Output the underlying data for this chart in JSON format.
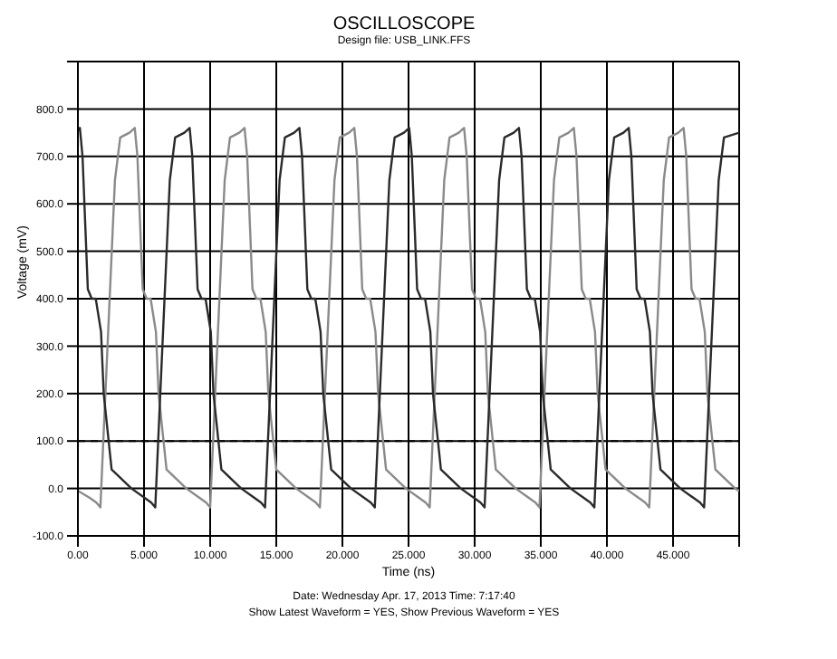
{
  "chart_data": {
    "type": "line",
    "title": "OSCILLOSCOPE",
    "subtitle": "Design file: USB_LINK.FFS",
    "xlabel": "Time (ns)",
    "ylabel": "Voltage (mV)",
    "annotations": [
      "Date: Wednesday Apr. 17, 2013  Time: 7:17:40",
      "Show Latest Waveform = YES,  Show Previous Waveform = YES"
    ],
    "xlim": [
      0,
      50
    ],
    "ylim": [
      -100,
      900
    ],
    "xticks": [
      {
        "value": 0,
        "label": "0.00"
      },
      {
        "value": 5,
        "label": "5.000"
      },
      {
        "value": 10,
        "label": "10.000"
      },
      {
        "value": 15,
        "label": "15.000"
      },
      {
        "value": 20,
        "label": "20.000"
      },
      {
        "value": 25,
        "label": "25.000"
      },
      {
        "value": 30,
        "label": "30.000"
      },
      {
        "value": 35,
        "label": "35.000"
      },
      {
        "value": 40,
        "label": "40.000"
      },
      {
        "value": 45,
        "label": "45.000"
      },
      {
        "value": 50,
        "label": null
      }
    ],
    "yticks": [
      {
        "value": -100,
        "label": "-100.0"
      },
      {
        "value": 0,
        "label": "0.0"
      },
      {
        "value": 100,
        "label": "100.0"
      },
      {
        "value": 200,
        "label": "200.0"
      },
      {
        "value": 300,
        "label": "300.0"
      },
      {
        "value": 400,
        "label": "400.0"
      },
      {
        "value": 500,
        "label": "500.0"
      },
      {
        "value": 600,
        "label": "600.0"
      },
      {
        "value": 700,
        "label": "700.0"
      },
      {
        "value": 800,
        "label": "800.0"
      },
      {
        "value": 900,
        "label": null
      }
    ],
    "grid": true,
    "marker": "none",
    "line_style": "solid",
    "ref_lines": [
      {
        "axis": "y",
        "value": 100,
        "line_style": "dashed"
      }
    ],
    "series": [
      {
        "color": "#8a8a8a",
        "x": [
          0,
          0.9,
          1.4,
          1.7,
          2.0,
          2.4,
          2.8,
          3.2,
          3.9,
          4.3,
          4.5,
          4.9,
          5.2,
          5.5,
          5.9,
          6.1,
          6.7,
          8.2,
          9.2,
          9.7,
          10.0,
          10.3,
          10.7,
          11.1,
          11.5,
          12.2,
          12.6,
          12.8,
          13.2,
          13.5,
          13.8,
          14.2,
          14.4,
          15.0,
          16.5,
          17.5,
          18.0,
          18.3,
          18.6,
          19.0,
          19.4,
          19.8,
          20.5,
          20.9,
          21.1,
          21.5,
          21.8,
          22.1,
          22.5,
          22.7,
          23.3,
          24.8,
          25.8,
          26.3,
          26.6,
          26.9,
          27.3,
          27.7,
          28.1,
          28.8,
          29.2,
          29.4,
          29.8,
          30.1,
          30.4,
          30.8,
          31.0,
          31.6,
          33.1,
          34.1,
          34.6,
          34.9,
          35.2,
          35.6,
          36.0,
          36.4,
          37.1,
          37.5,
          37.7,
          38.1,
          38.4,
          38.7,
          39.1,
          39.3,
          39.9,
          41.4,
          42.4,
          42.9,
          43.2,
          43.5,
          43.9,
          44.3,
          44.7,
          45.4,
          45.8,
          46.0,
          46.4,
          46.7,
          47.0,
          47.4,
          47.6,
          48.2,
          49.7,
          50
        ],
        "values": [
          -5,
          -20,
          -30,
          -40,
          150,
          400,
          650,
          740,
          750,
          760,
          700,
          420,
          400,
          400,
          330,
          200,
          40,
          0,
          -20,
          -30,
          -40,
          150,
          400,
          650,
          740,
          750,
          760,
          700,
          420,
          400,
          400,
          330,
          200,
          40,
          0,
          -20,
          -30,
          -40,
          150,
          400,
          650,
          740,
          750,
          760,
          700,
          420,
          400,
          400,
          330,
          200,
          40,
          0,
          -20,
          -30,
          -40,
          150,
          400,
          650,
          740,
          750,
          760,
          700,
          420,
          400,
          400,
          330,
          200,
          40,
          0,
          -20,
          -30,
          -40,
          150,
          400,
          650,
          740,
          750,
          760,
          700,
          420,
          400,
          400,
          330,
          200,
          40,
          0,
          -20,
          -30,
          -40,
          150,
          400,
          650,
          740,
          750,
          760,
          700,
          420,
          400,
          400,
          330,
          200,
          40,
          0,
          -5
        ]
      },
      {
        "color": "#2a2a2a",
        "x": [
          0,
          0.15,
          0.35,
          0.75,
          1.05,
          1.35,
          1.75,
          1.95,
          2.55,
          4.05,
          5.05,
          5.55,
          5.85,
          6.15,
          6.55,
          6.95,
          7.35,
          8.05,
          8.45,
          8.65,
          9.05,
          9.35,
          9.65,
          10.05,
          10.25,
          10.85,
          12.35,
          13.35,
          13.85,
          14.15,
          14.45,
          14.85,
          15.25,
          15.65,
          16.35,
          16.75,
          16.95,
          17.35,
          17.65,
          17.95,
          18.35,
          18.55,
          19.15,
          20.65,
          21.65,
          22.15,
          22.45,
          22.75,
          23.15,
          23.55,
          23.95,
          24.65,
          25.05,
          25.25,
          25.65,
          25.95,
          26.25,
          26.65,
          26.85,
          27.45,
          28.95,
          29.95,
          30.45,
          30.75,
          31.05,
          31.45,
          31.85,
          32.25,
          32.95,
          33.35,
          33.55,
          33.95,
          34.25,
          34.55,
          34.95,
          35.15,
          35.75,
          37.25,
          38.25,
          38.75,
          39.05,
          39.35,
          39.75,
          40.15,
          40.55,
          41.25,
          41.65,
          41.85,
          42.25,
          42.55,
          42.85,
          43.25,
          43.45,
          44.05,
          45.55,
          46.55,
          47.05,
          47.35,
          47.65,
          48.05,
          48.45,
          48.85,
          50
        ],
        "values": [
          755,
          760,
          700,
          420,
          400,
          400,
          330,
          200,
          40,
          0,
          -20,
          -30,
          -40,
          150,
          400,
          650,
          740,
          750,
          760,
          700,
          420,
          400,
          400,
          330,
          200,
          40,
          0,
          -20,
          -30,
          -40,
          150,
          400,
          650,
          740,
          750,
          760,
          700,
          420,
          400,
          400,
          330,
          200,
          40,
          0,
          -20,
          -30,
          -40,
          150,
          400,
          650,
          740,
          750,
          760,
          700,
          420,
          400,
          400,
          330,
          200,
          40,
          0,
          -20,
          -30,
          -40,
          150,
          400,
          650,
          740,
          750,
          760,
          700,
          420,
          400,
          400,
          330,
          200,
          40,
          0,
          -20,
          -30,
          -40,
          150,
          400,
          650,
          740,
          750,
          760,
          700,
          420,
          400,
          400,
          330,
          200,
          40,
          0,
          -20,
          -30,
          -40,
          150,
          400,
          650,
          740,
          750
        ]
      }
    ]
  }
}
